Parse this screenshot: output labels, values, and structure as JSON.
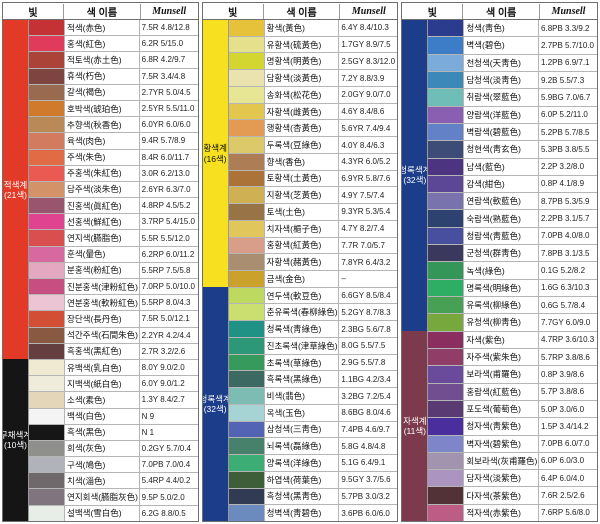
{
  "header": {
    "light": "빛",
    "name": "색 이름",
    "munsell": "Munsell"
  },
  "tables": [
    {
      "sections": [
        {
          "label": "적색계",
          "count": "(21색)",
          "bg": "#e23a27",
          "fg": "#ffffff",
          "rows": [
            {
              "name": "적색(赤色)",
              "munsell": "7.5R 4.8/12.8",
              "hex": "#c53236"
            },
            {
              "name": "홍색(紅色)",
              "munsell": "6.2R 5/15.0",
              "hex": "#e13b5c"
            },
            {
              "name": "적토색(赤土色)",
              "munsell": "6.8R 4.2/9.7",
              "hex": "#ab4338"
            },
            {
              "name": "휴색(朽色)",
              "munsell": "7.5R 3.4/4.8",
              "hex": "#7e4540"
            },
            {
              "name": "갈색(褐色)",
              "munsell": "2.7YR 5.0/4.5",
              "hex": "#996a50"
            },
            {
              "name": "호박색(琥珀色)",
              "munsell": "2.5YR 5.5/11.0",
              "hex": "#cf7a2c"
            },
            {
              "name": "추향색(秋香色)",
              "munsell": "6.0YR 6.0/6.0",
              "hex": "#b98a58"
            },
            {
              "name": "육색(肉色)",
              "munsell": "9.4R 5.7/8.9",
              "hex": "#d27b5e"
            },
            {
              "name": "주색(朱色)",
              "munsell": "8.4R 6.0/11.7",
              "hex": "#e06b45"
            },
            {
              "name": "주홍색(朱紅色)",
              "munsell": "3.0R 6.2/13.0",
              "hex": "#ea5a52"
            },
            {
              "name": "담주색(淡朱色)",
              "munsell": "2.6YR 6.3/7.0",
              "hex": "#d39268"
            },
            {
              "name": "진홍색(眞紅色)",
              "munsell": "4.8RP 4.5/5.2",
              "hex": "#99546e"
            },
            {
              "name": "선홍색(鮮紅色)",
              "munsell": "3.7RP 5.4/15.0",
              "hex": "#e04390"
            },
            {
              "name": "연지색(臙脂色)",
              "munsell": "5.5R 5.5/12.0",
              "hex": "#d94e4f"
            },
            {
              "name": "훈색(暈色)",
              "munsell": "6.2RP 6.0/11.2",
              "hex": "#d868a0"
            },
            {
              "name": "분홍색(粉紅色)",
              "munsell": "5.5RP 7.5/5.8",
              "hex": "#e4a9c1"
            },
            {
              "name": "진분홍색(津粉紅色)",
              "munsell": "7.0RP 5.0/10.0",
              "hex": "#c64e80"
            },
            {
              "name": "연분홍색(軟粉紅色)",
              "munsell": "5.5RP 8.0/4.3",
              "hex": "#ecc4d3"
            },
            {
              "name": "장단색(長丹色)",
              "munsell": "7.5R 5.0/12.1",
              "hex": "#d24f35"
            },
            {
              "name": "석간주색(石間朱色)",
              "munsell": "2.2YR 4.2/4.4",
              "hex": "#8a5942"
            },
            {
              "name": "흑홍색(黑紅色)",
              "munsell": "2.7R 3.2/2.6",
              "hex": "#653f40"
            }
          ]
        },
        {
          "label": "무채색계",
          "count": "(10색)",
          "bg": "#151515",
          "fg": "#ffffff",
          "rows": [
            {
              "name": "유백색(乳白色)",
              "munsell": "8.0Y 9.0/2.0",
              "hex": "#f0ead3"
            },
            {
              "name": "지백색(紙白色)",
              "munsell": "6.0Y 9.0/1.2",
              "hex": "#efecdc"
            },
            {
              "name": "소색(素色)",
              "munsell": "1.3Y 8.4/2.7",
              "hex": "#e4d6b8"
            },
            {
              "name": "백색(白色)",
              "munsell": "N 9",
              "hex": "#f4f4f4"
            },
            {
              "name": "흑색(黑色)",
              "munsell": "N 1",
              "hex": "#161616"
            },
            {
              "name": "회색(灰色)",
              "munsell": "0.2GY 5.7/0.4",
              "hex": "#8f908b"
            },
            {
              "name": "구색(鳩色)",
              "munsell": "7.0PB 7.0/0.4",
              "hex": "#b1b3bb"
            },
            {
              "name": "치색(淄色)",
              "munsell": "5.4RP 4.4/0.2",
              "hex": "#6f696c"
            },
            {
              "name": "연지회색(臙脂灰色)",
              "munsell": "9.5P 5.0/2.0",
              "hex": "#80757f"
            },
            {
              "name": "설백색(雪白色)",
              "munsell": "6.2G 8.8/0.5",
              "hex": "#e6eee7"
            }
          ]
        }
      ]
    },
    {
      "sections": [
        {
          "label": "황색계",
          "count": "(16색)",
          "bg": "#f6e01f",
          "fg": "#111111",
          "rows": [
            {
              "name": "황색(黃色)",
              "munsell": "6.4Y 8.4/10.3",
              "hex": "#e6c23a"
            },
            {
              "name": "유황색(硫黃色)",
              "munsell": "1.7GY 8.9/7.5",
              "hex": "#e4e08c"
            },
            {
              "name": "명황색(明黃色)",
              "munsell": "2.5GY 8.3/12.0",
              "hex": "#d3d531"
            },
            {
              "name": "담황색(淡黃色)",
              "munsell": "7.2Y 8.8/3.9",
              "hex": "#eae2af"
            },
            {
              "name": "송화색(松花色)",
              "munsell": "2.0GY 9.0/7.0",
              "hex": "#e6e695"
            },
            {
              "name": "자황색(雌黃色)",
              "munsell": "4.6Y 8.4/8.6",
              "hex": "#e3c64e"
            },
            {
              "name": "행황색(杏黃色)",
              "munsell": "5.6YR 7.4/9.4",
              "hex": "#e39a52"
            },
            {
              "name": "두록색(豆綠色)",
              "munsell": "4.0Y 8.4/6.3",
              "hex": "#dcc96a"
            },
            {
              "name": "향색(香色)",
              "munsell": "4.3YR 6.0/5.2",
              "hex": "#ad7d55"
            },
            {
              "name": "토황색(土黃色)",
              "munsell": "6.9YR 5.8/7.6",
              "hex": "#ac7338"
            },
            {
              "name": "지황색(芝黃色)",
              "munsell": "4.9Y 7.5/7.4",
              "hex": "#cfb153"
            },
            {
              "name": "토색(土色)",
              "munsell": "9.3YR 5.3/5.4",
              "hex": "#977345"
            },
            {
              "name": "치자색(梔子色)",
              "munsell": "4.7Y 8.2/7.4",
              "hex": "#e0c65b"
            },
            {
              "name": "홍황색(紅黃色)",
              "munsell": "7.7R 7.0/5.7",
              "hex": "#d89e8a"
            },
            {
              "name": "자황색(赭黃色)",
              "munsell": "7.8YR 6.4/3.2",
              "hex": "#aa8e71"
            },
            {
              "name": "금색(金色)",
              "munsell": "–",
              "hex": "#c9a12b"
            }
          ]
        },
        {
          "label": "청록색계",
          "count": "(32색)",
          "bg": "#1c3d8a",
          "fg": "#ffffff",
          "rows": [
            {
              "name": "연두색(軟豆色)",
              "munsell": "6.6GY 8.5/8.4",
              "hex": "#bdd95f"
            },
            {
              "name": "춘유록색(春柳綠色)",
              "munsell": "5.2GY 8.7/8.3",
              "hex": "#cbdf70"
            },
            {
              "name": "청록색(靑綠色)",
              "munsell": "2.3BG 5.6/7.8",
              "hex": "#1f9185"
            },
            {
              "name": "진초록색(津草綠色)",
              "munsell": "8.0G 5.5/7.5",
              "hex": "#2c9877"
            },
            {
              "name": "초록색(草綠色)",
              "munsell": "2.9G 5.5/7.8",
              "hex": "#369a5d"
            },
            {
              "name": "흑록색(黑綠色)",
              "munsell": "1.1BG 4.2/3.4",
              "hex": "#3c6a63"
            },
            {
              "name": "비색(翡色)",
              "munsell": "3.2BG 7.2/5.4",
              "hex": "#7cbcb2"
            },
            {
              "name": "옥색(玉色)",
              "munsell": "8.6BG 8.0/4.6",
              "hex": "#a6d3d3"
            },
            {
              "name": "삼청색(三靑色)",
              "munsell": "7.4PB 4.6/9.7",
              "hex": "#5364b5"
            },
            {
              "name": "뇌록색(磊綠色)",
              "munsell": "5.8G 4.8/4.8",
              "hex": "#47806b"
            },
            {
              "name": "양록색(洋綠色)",
              "munsell": "5.1G 6.4/9.1",
              "hex": "#3dad76"
            },
            {
              "name": "하엽색(荷葉色)",
              "munsell": "9.5GY 3.7/5.6",
              "hex": "#3e5e3a"
            },
            {
              "name": "흑청색(黑靑色)",
              "munsell": "5.7PB 3.0/3.2",
              "hex": "#313b54"
            },
            {
              "name": "청벽색(靑碧色)",
              "munsell": "3.6PB 6.0/6.0",
              "hex": "#6b8bbf"
            }
          ]
        }
      ]
    },
    {
      "sections": [
        {
          "label": "청록색계",
          "count": "(32색)",
          "bg": "#1c3d8a",
          "fg": "#ffffff",
          "rows": [
            {
              "name": "청색(靑色)",
              "munsell": "6.8PB 3.3/9.2",
              "hex": "#2b3b8d"
            },
            {
              "name": "벽색(碧色)",
              "munsell": "2.7PB 5.7/10.0",
              "hex": "#3d7cc6"
            },
            {
              "name": "천청색(天靑色)",
              "munsell": "1.2PB 6.9/7.1",
              "hex": "#7babd9"
            },
            {
              "name": "담청색(淡靑色)",
              "munsell": "9.2B 5.5/7.3",
              "hex": "#3c88b8"
            },
            {
              "name": "취람색(翠藍色)",
              "munsell": "5.9BG 7.0/6.7",
              "hex": "#6ebdb6"
            },
            {
              "name": "양람색(洋藍色)",
              "munsell": "6.0P 5.2/11.0",
              "hex": "#8a5fb2"
            },
            {
              "name": "벽람색(碧藍色)",
              "munsell": "5.2PB 5.7/8.5",
              "hex": "#6281c6"
            },
            {
              "name": "청현색(靑玄色)",
              "munsell": "5.3PB 3.8/5.5",
              "hex": "#3d4b77"
            },
            {
              "name": "남색(藍色)",
              "munsell": "2.2P 3.2/8.0",
              "hex": "#4c3480"
            },
            {
              "name": "감색(紺色)",
              "munsell": "0.8P 4.1/8.9",
              "hex": "#5c4797"
            },
            {
              "name": "연람색(軟藍色)",
              "munsell": "8.7PB 5.3/5.9",
              "hex": "#7973ad"
            },
            {
              "name": "숙람색(熟藍色)",
              "munsell": "2.2PB 3.1/5.7",
              "hex": "#2e4270"
            },
            {
              "name": "청람색(靑藍色)",
              "munsell": "7.0PB 4.0/8.0",
              "hex": "#474f9e"
            },
            {
              "name": "군청색(群靑色)",
              "munsell": "7.8PB 3.1/3.5",
              "hex": "#3a395d"
            },
            {
              "name": "녹색(綠色)",
              "munsell": "0.1G 5.2/8.2",
              "hex": "#35965a"
            },
            {
              "name": "명록색(明綠色)",
              "munsell": "1.6G 6.3/10.3",
              "hex": "#2ead65"
            },
            {
              "name": "유록색(柳綠色)",
              "munsell": "0.6G 5.7/8.4",
              "hex": "#48a054"
            },
            {
              "name": "유청색(柳靑色)",
              "munsell": "7.7GY 6.0/9.0",
              "hex": "#76a83d"
            }
          ]
        },
        {
          "label": "자색계",
          "count": "(11색)",
          "bg": "#7d3a4c",
          "fg": "#ffffff",
          "rows": [
            {
              "name": "자색(紫色)",
              "munsell": "4.7RP 3.6/10.3",
              "hex": "#8a2e5f"
            },
            {
              "name": "자주색(紫朱色)",
              "munsell": "5.7RP 3.8/8.6",
              "hex": "#903e68"
            },
            {
              "name": "보라색(甫羅色)",
              "munsell": "0.8P 3.9/8.6",
              "hex": "#6a4a9b"
            },
            {
              "name": "홍람색(紅藍色)",
              "munsell": "5.7P 3.8/8.6",
              "hex": "#704e90"
            },
            {
              "name": "포도색(葡萄色)",
              "munsell": "5.0P 3.0/6.0",
              "hex": "#593a73"
            },
            {
              "name": "청자색(靑紫色)",
              "munsell": "1.5P 3.4/14.2",
              "hex": "#4a2e9d"
            },
            {
              "name": "벽자색(碧紫色)",
              "munsell": "7.0PB 6.0/7.0",
              "hex": "#7e86c9"
            },
            {
              "name": "회보라색(灰甫羅色)",
              "munsell": "6.0P 6.0/3.0",
              "hex": "#a294ae"
            },
            {
              "name": "담자색(淡紫色)",
              "munsell": "6.4P 6.0/4.0",
              "hex": "#ab94bf"
            },
            {
              "name": "다자색(茶紫色)",
              "munsell": "7.6R 2.5/2.6",
              "hex": "#523137"
            },
            {
              "name": "적자색(赤紫色)",
              "munsell": "7.6RP 5.6/8.0",
              "hex": "#bd5c85"
            }
          ]
        }
      ]
    }
  ]
}
